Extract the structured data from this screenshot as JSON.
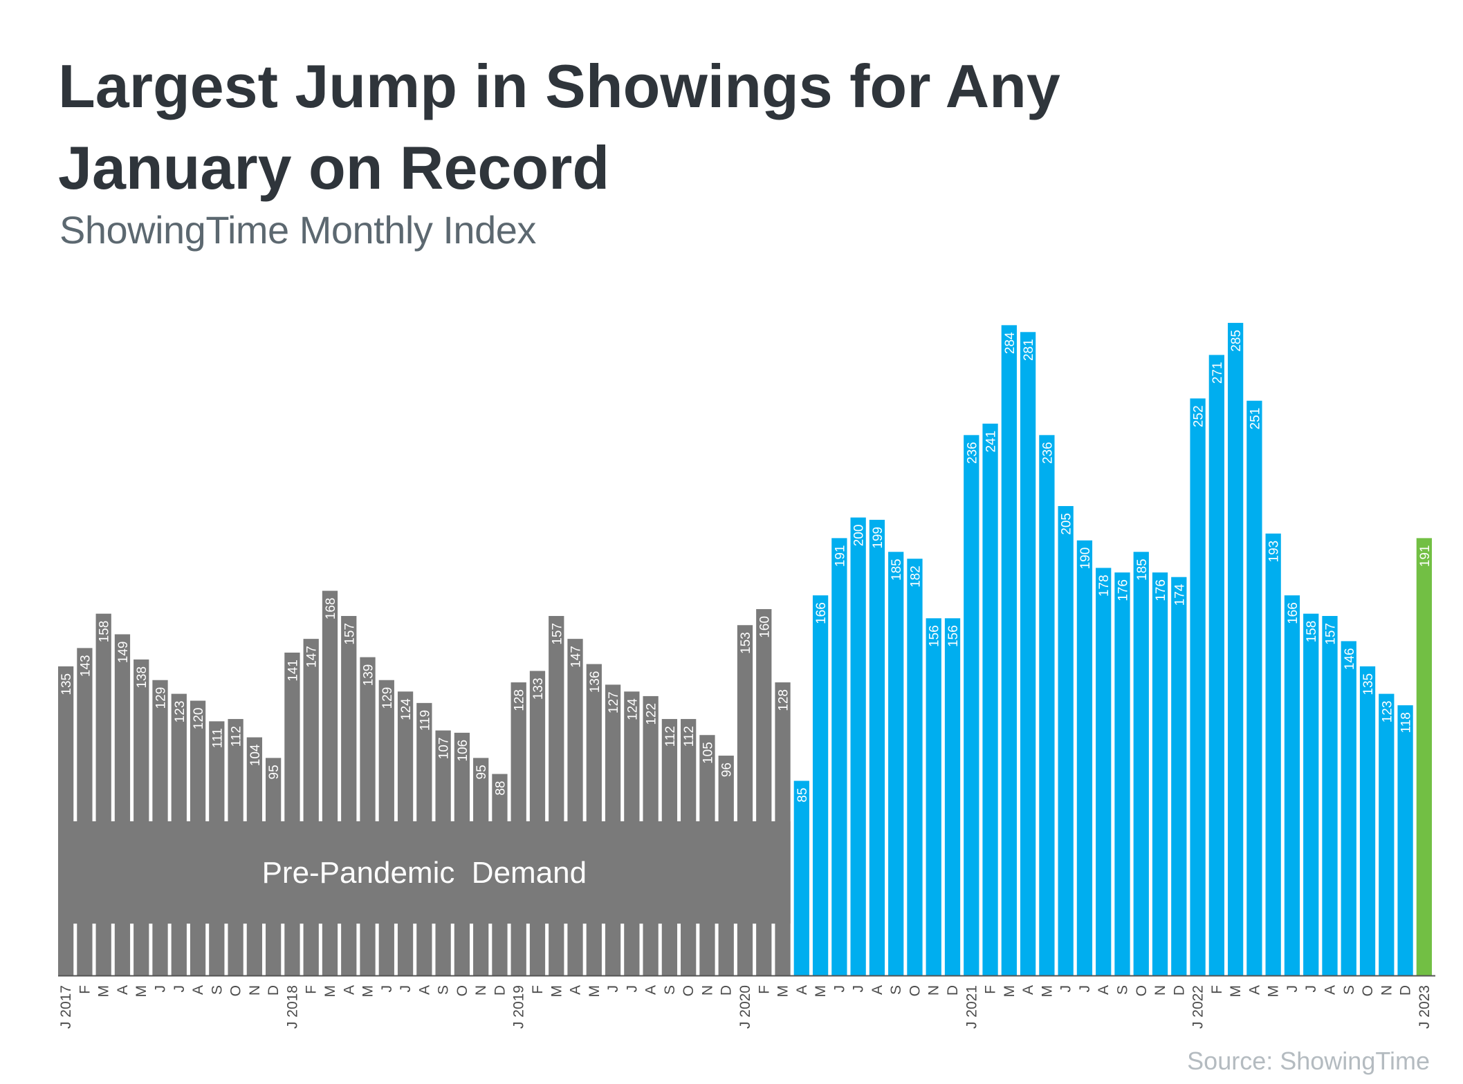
{
  "chart_data": {
    "type": "bar",
    "title": "Largest Jump in Showings for Any January on Record",
    "title_lines": [
      "Largest Jump in Showings for Any",
      "January on Record"
    ],
    "subtitle": "ShowingTime Monthly Index",
    "source": "Source: ShowingTime",
    "band_label": "Pre-Pandemic  Demand",
    "ylim": [
      0,
      300
    ],
    "categories": [
      "J 2017",
      "F",
      "M",
      "A",
      "M",
      "J",
      "J",
      "A",
      "S",
      "O",
      "N",
      "D",
      "J 2018",
      "F",
      "M",
      "A",
      "M",
      "J",
      "J",
      "A",
      "S",
      "O",
      "N",
      "D",
      "J 2019",
      "F",
      "M",
      "A",
      "M",
      "J",
      "J",
      "A",
      "S",
      "O",
      "N",
      "D",
      "J 2020",
      "F",
      "M",
      "A",
      "M",
      "J",
      "J",
      "A",
      "S",
      "O",
      "N",
      "D",
      "J 2021",
      "F",
      "M",
      "A",
      "M",
      "J",
      "J",
      "A",
      "S",
      "O",
      "N",
      "D",
      "J 2022",
      "F",
      "M",
      "A",
      "M",
      "J",
      "J",
      "A",
      "S",
      "O",
      "N",
      "D",
      "J 2023"
    ],
    "values": [
      135,
      143,
      158,
      149,
      138,
      129,
      123,
      120,
      111,
      112,
      104,
      95,
      141,
      147,
      168,
      157,
      139,
      129,
      124,
      119,
      107,
      106,
      95,
      88,
      128,
      133,
      157,
      147,
      136,
      127,
      124,
      122,
      112,
      112,
      105,
      96,
      153,
      160,
      128,
      85,
      166,
      191,
      200,
      199,
      185,
      182,
      156,
      156,
      236,
      241,
      284,
      281,
      236,
      205,
      190,
      178,
      176,
      185,
      176,
      174,
      252,
      271,
      285,
      251,
      193,
      166,
      158,
      157,
      146,
      135,
      123,
      118,
      191
    ],
    "series_groups": [
      {
        "name": "Pre-Pandemic",
        "from": 0,
        "to": 38,
        "color": "#7a7a7a"
      },
      {
        "name": "Pandemic",
        "from": 39,
        "to": 71,
        "color": "#00aeef"
      },
      {
        "name": "January 2023",
        "from": 72,
        "to": 72,
        "color": "#72bf44"
      }
    ]
  }
}
